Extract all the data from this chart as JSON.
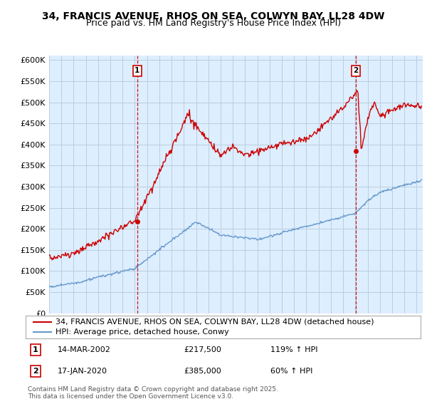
{
  "title_line1": "34, FRANCIS AVENUE, RHOS ON SEA, COLWYN BAY, LL28 4DW",
  "title_line2": "Price paid vs. HM Land Registry's House Price Index (HPI)",
  "ylabel_ticks": [
    "£0",
    "£50K",
    "£100K",
    "£150K",
    "£200K",
    "£250K",
    "£300K",
    "£350K",
    "£400K",
    "£450K",
    "£500K",
    "£550K",
    "£600K"
  ],
  "ytick_values": [
    0,
    50000,
    100000,
    150000,
    200000,
    250000,
    300000,
    350000,
    400000,
    450000,
    500000,
    550000,
    600000
  ],
  "ylim": [
    0,
    610000
  ],
  "xlim_start": 1995.0,
  "xlim_end": 2025.5,
  "red_color": "#cc0000",
  "blue_color": "#6699cc",
  "vline_color": "#cc0000",
  "chart_bg_color": "#ddeeff",
  "background_color": "#ffffff",
  "grid_color": "#bbccdd",
  "legend_label_red": "34, FRANCIS AVENUE, RHOS ON SEA, COLWYN BAY, LL28 4DW (detached house)",
  "legend_label_blue": "HPI: Average price, detached house, Conwy",
  "marker1_x": 2002.2,
  "marker1_y": 217500,
  "marker1_label": "1",
  "marker1_date": "14-MAR-2002",
  "marker1_price": "£217,500",
  "marker1_hpi": "119% ↑ HPI",
  "marker2_x": 2020.05,
  "marker2_y": 385000,
  "marker2_label": "2",
  "marker2_date": "17-JAN-2020",
  "marker2_price": "£385,000",
  "marker2_hpi": "60% ↑ HPI",
  "footer": "Contains HM Land Registry data © Crown copyright and database right 2025.\nThis data is licensed under the Open Government Licence v3.0.",
  "title_fontsize": 10,
  "subtitle_fontsize": 9,
  "axis_fontsize": 8,
  "legend_fontsize": 8,
  "footer_fontsize": 6.5
}
